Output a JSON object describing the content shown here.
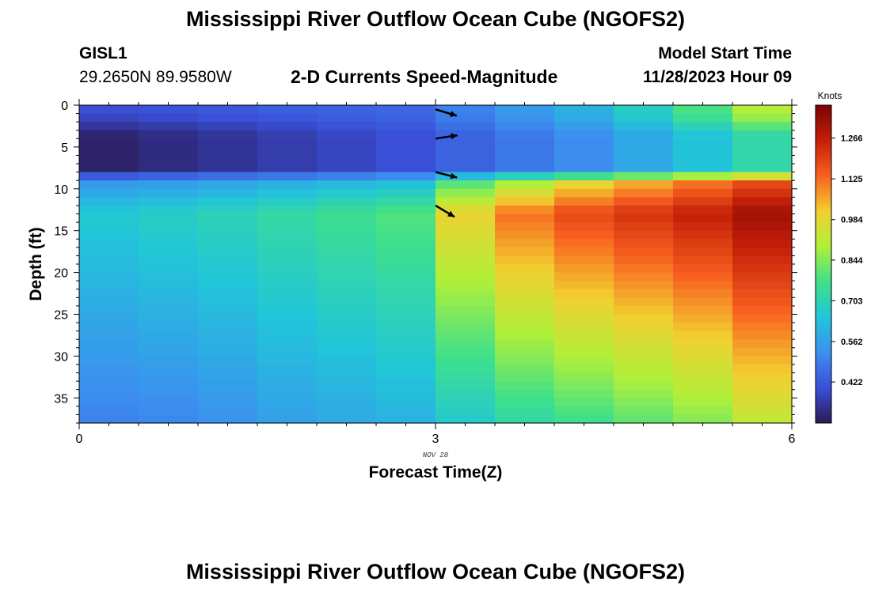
{
  "header": {
    "title": "Mississippi River Outflow Ocean Cube (NGOFS2)",
    "station": "GISL1",
    "coords": "29.2650N  89.9580W",
    "subtitle": "2-D Currents Speed-Magnitude",
    "start_label": "Model Start Time",
    "start_date": "11/28/2023 Hour 09"
  },
  "footer": {
    "title": "Mississippi River Outflow Ocean Cube (NGOFS2)"
  },
  "chart_data": {
    "type": "heatmap",
    "xlabel": "Forecast Time(Z)",
    "ylabel": "Depth (ft)",
    "xlim": [
      0,
      6
    ],
    "ylim": [
      38,
      0
    ],
    "x_ticks": [
      "0",
      "3",
      "6"
    ],
    "x_sublabel": "NOV 28",
    "y_ticks": [
      "0",
      "5",
      "10",
      "15",
      "20",
      "25",
      "30",
      "35"
    ],
    "colorbar": {
      "title": "Knots",
      "ticks": [
        "0.422",
        "0.562",
        "0.703",
        "0.844",
        "0.984",
        "1.125",
        "1.266"
      ],
      "range": [
        0.28,
        1.38
      ],
      "colors": [
        "#2a1a55",
        "#3a4fd8",
        "#3c8ff0",
        "#21c6d8",
        "#3fe08a",
        "#b0f03a",
        "#f2cf30",
        "#f86020",
        "#c41f08",
        "#7a0303"
      ]
    },
    "time_columns": [
      0.25,
      0.75,
      1.25,
      1.75,
      2.25,
      2.75,
      3.25,
      3.75,
      4.25,
      4.75,
      5.25,
      5.75
    ],
    "depth_profile_columns": [
      {
        "x": 0.25,
        "surface": 0.4,
        "mid": 0.3,
        "interface": 0.55,
        "below": 0.66,
        "bottom": 0.5
      },
      {
        "x": 0.75,
        "surface": 0.41,
        "mid": 0.32,
        "interface": 0.56,
        "below": 0.68,
        "bottom": 0.51
      },
      {
        "x": 1.25,
        "surface": 0.42,
        "mid": 0.34,
        "interface": 0.58,
        "below": 0.7,
        "bottom": 0.53
      },
      {
        "x": 1.75,
        "surface": 0.43,
        "mid": 0.36,
        "interface": 0.6,
        "below": 0.73,
        "bottom": 0.56
      },
      {
        "x": 2.25,
        "surface": 0.44,
        "mid": 0.38,
        "interface": 0.62,
        "below": 0.76,
        "bottom": 0.58
      },
      {
        "x": 2.75,
        "surface": 0.45,
        "mid": 0.4,
        "interface": 0.64,
        "below": 0.79,
        "bottom": 0.6
      },
      {
        "x": 3.25,
        "surface": 0.5,
        "mid": 0.44,
        "interface": 0.8,
        "below": 1.0,
        "bottom": 0.66
      },
      {
        "x": 3.75,
        "surface": 0.55,
        "mid": 0.48,
        "interface": 0.9,
        "below": 1.12,
        "bottom": 0.72
      },
      {
        "x": 4.25,
        "surface": 0.6,
        "mid": 0.52,
        "interface": 1.0,
        "below": 1.18,
        "bottom": 0.76
      },
      {
        "x": 4.75,
        "surface": 0.68,
        "mid": 0.58,
        "interface": 1.06,
        "below": 1.22,
        "bottom": 0.8
      },
      {
        "x": 5.25,
        "surface": 0.78,
        "mid": 0.64,
        "interface": 1.12,
        "below": 1.26,
        "bottom": 0.84
      },
      {
        "x": 5.75,
        "surface": 0.9,
        "mid": 0.72,
        "interface": 1.18,
        "below": 1.32,
        "bottom": 0.92
      }
    ],
    "vectors": [
      {
        "time": 3.0,
        "depth": 0.5,
        "dx": 1.0,
        "dy": 0.3
      },
      {
        "time": 3.0,
        "depth": 4.0,
        "dx": 1.0,
        "dy": -0.15
      },
      {
        "time": 3.0,
        "depth": 8.0,
        "dx": 1.0,
        "dy": 0.25
      },
      {
        "time": 3.0,
        "depth": 12.0,
        "dx": 1.0,
        "dy": 0.6
      }
    ]
  }
}
